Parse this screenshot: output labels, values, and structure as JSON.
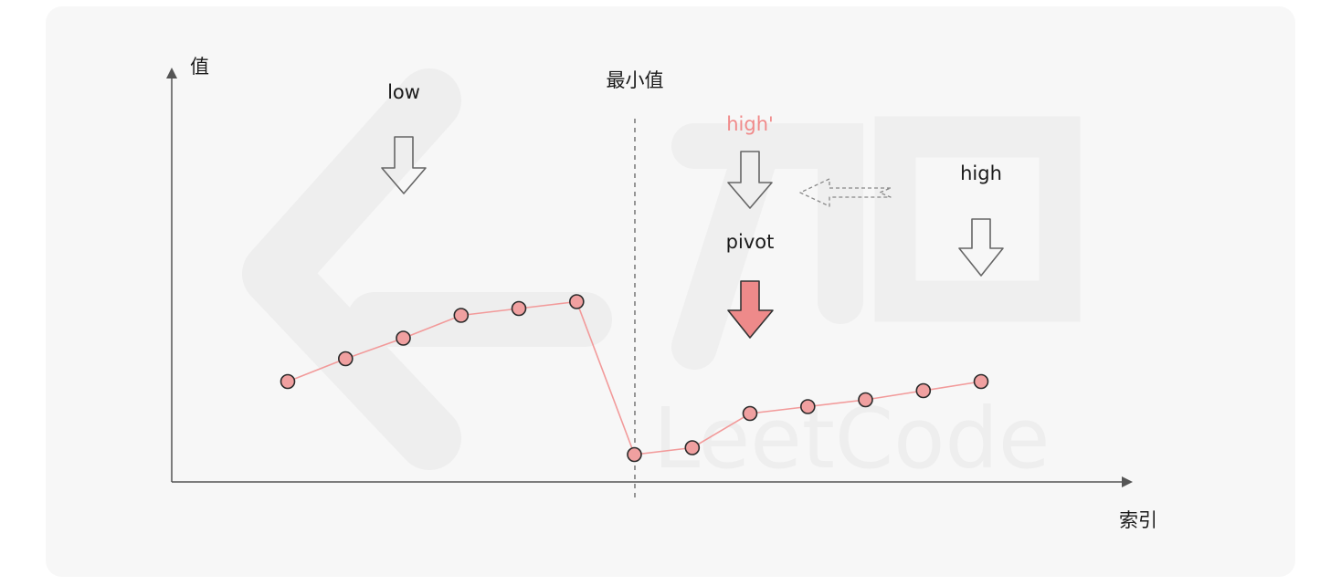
{
  "axes": {
    "y_label": "值",
    "x_label": "索引"
  },
  "labels": {
    "low": "low",
    "min_value": "最小值",
    "high_prime": "high'",
    "pivot": "pivot",
    "high": "high"
  },
  "watermark": {
    "text": "LeetCode"
  },
  "points": [
    {
      "x": 0,
      "y": 4.4
    },
    {
      "x": 1,
      "y": 5.4
    },
    {
      "x": 2,
      "y": 6.3
    },
    {
      "x": 3,
      "y": 7.3
    },
    {
      "x": 4,
      "y": 7.6
    },
    {
      "x": 5,
      "y": 7.9
    },
    {
      "x": 6,
      "y": 1.2
    },
    {
      "x": 7,
      "y": 1.5
    },
    {
      "x": 8,
      "y": 3.0
    },
    {
      "x": 9,
      "y": 3.3
    },
    {
      "x": 10,
      "y": 3.6
    },
    {
      "x": 11,
      "y": 4.0
    },
    {
      "x": 12,
      "y": 4.4
    }
  ],
  "colors": {
    "accent": "#f08a8a",
    "point_fill": "#f0a0a0",
    "line": "#f29a9a",
    "pivot_arrow": "#ee8a8a",
    "axis": "#555555",
    "panel_bg": "#f7f7f7"
  }
}
